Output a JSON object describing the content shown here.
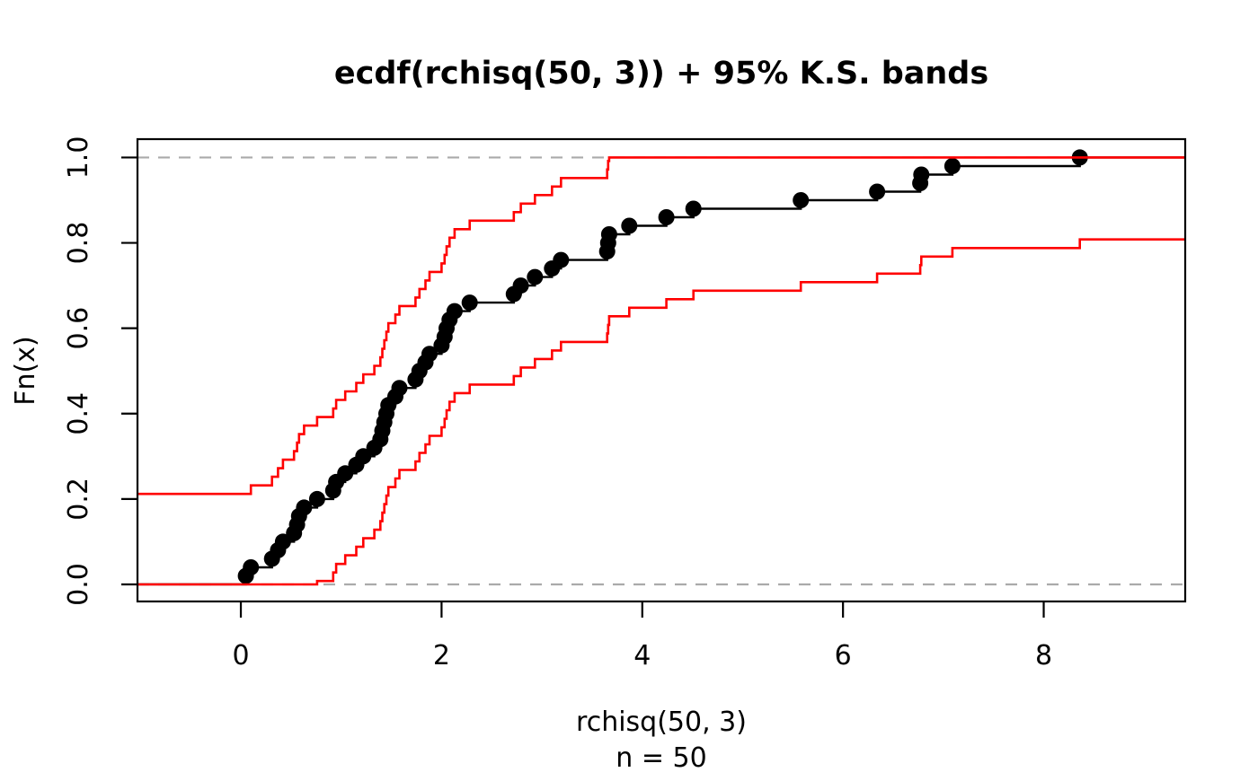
{
  "figure": {
    "title": "ecdf(rchisq(50, 3)) + 95% K.S. bands",
    "x_axis": {
      "label": "rchisq(50, 3)",
      "sub_label": "n =  50",
      "tick_labels": [
        "0",
        "2",
        "4",
        "6",
        "8"
      ]
    },
    "y_axis": {
      "label": "Fn(x)",
      "tick_labels": [
        "0.0",
        "0.2",
        "0.4",
        "0.6",
        "0.8",
        "1.0"
      ]
    }
  },
  "chart_data": {
    "type": "line",
    "subtype": "ecdf-step-with-ks-bands",
    "title": "ecdf(rchisq(50, 3)) + 95% K.S. bands",
    "xlabel": "rchisq(50, 3)",
    "ylabel": "Fn(x)",
    "subtitle": "n =  50",
    "n": 50,
    "sorted_x": [
      0.05,
      0.1,
      0.31,
      0.37,
      0.42,
      0.53,
      0.56,
      0.58,
      0.63,
      0.76,
      0.92,
      0.95,
      1.04,
      1.15,
      1.22,
      1.33,
      1.39,
      1.41,
      1.43,
      1.45,
      1.47,
      1.54,
      1.58,
      1.74,
      1.78,
      1.84,
      1.88,
      2.0,
      2.03,
      2.05,
      2.08,
      2.13,
      2.28,
      2.72,
      2.79,
      2.93,
      3.1,
      3.19,
      3.65,
      3.66,
      3.67,
      3.87,
      4.24,
      4.51,
      5.58,
      6.34,
      6.77,
      6.78,
      7.09,
      8.36
    ],
    "ecdf_y": [
      0.02,
      0.04,
      0.06,
      0.08,
      0.1,
      0.12,
      0.14,
      0.16,
      0.18,
      0.2,
      0.22,
      0.24,
      0.26,
      0.28,
      0.3,
      0.32,
      0.34,
      0.36,
      0.38,
      0.4,
      0.42,
      0.44,
      0.46,
      0.48,
      0.5,
      0.52,
      0.54,
      0.56,
      0.58,
      0.6,
      0.62,
      0.64,
      0.66,
      0.68,
      0.7,
      0.72,
      0.74,
      0.76,
      0.78,
      0.8,
      0.82,
      0.84,
      0.86,
      0.88,
      0.9,
      0.92,
      0.94,
      0.96,
      0.98,
      1.0
    ],
    "ks_band": {
      "confidence": "95%",
      "D": 0.192,
      "step": 0.02,
      "upper_rule": "min(1, F(x) + 1/n + D)",
      "lower_rule": "max(0, min(1, F(x) + 1/n) - D)",
      "upper_left_flat_value": 0.212,
      "lower_right_flat_value": 0.808
    },
    "reference_lines": {
      "y": [
        0,
        1
      ],
      "style": "dashed"
    },
    "x_ticks": [
      0,
      2,
      4,
      6,
      8
    ],
    "y_ticks": [
      0.0,
      0.2,
      0.4,
      0.6,
      0.8,
      1.0
    ],
    "xlim": [
      -1.03,
      9.41
    ],
    "ylim": [
      -0.04,
      1.043
    ],
    "grid": false,
    "legend": null,
    "colors": {
      "ecdf": "#000000",
      "band": "#FF0000",
      "reference_dashed": "#AAAAAA",
      "box": "#000000",
      "background": "#FFFFFF"
    },
    "point_radius_px": 9
  }
}
